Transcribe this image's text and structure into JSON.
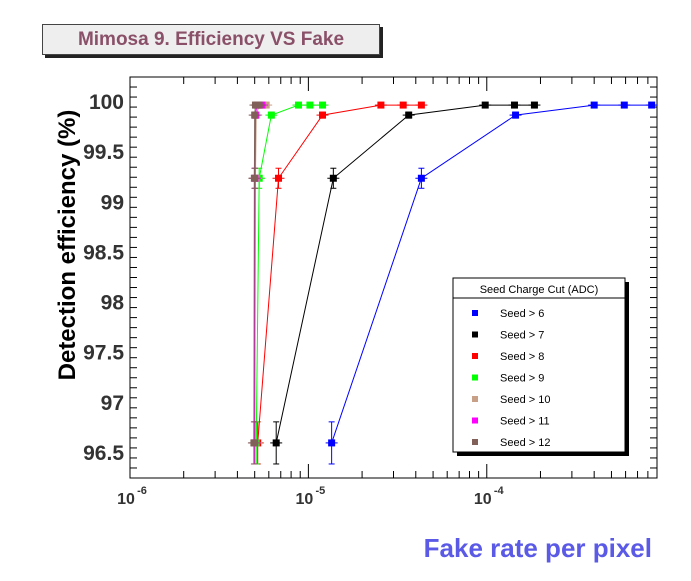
{
  "chart_data": {
    "type": "scatter",
    "title": "Mimosa 9. Efficiency VS Fake",
    "xlabel": "Fake rate per pixel",
    "ylabel": "Detection efficiency (%)",
    "xscale": "log",
    "xlim": [
      1e-06,
      0.0009
    ],
    "ylim": [
      96.25,
      100.25
    ],
    "xticks": [
      {
        "value": 1e-06,
        "label": "10",
        "exp": "-6"
      },
      {
        "value": 1e-05,
        "label": "10",
        "exp": "-5"
      },
      {
        "value": 0.0001,
        "label": "10",
        "exp": "-4"
      }
    ],
    "yticks": [
      {
        "value": 96.5,
        "label": "96.5"
      },
      {
        "value": 97,
        "label": "97"
      },
      {
        "value": 97.5,
        "label": "97.5"
      },
      {
        "value": 98,
        "label": "98"
      },
      {
        "value": 98.5,
        "label": "98.5"
      },
      {
        "value": 99,
        "label": "99"
      },
      {
        "value": 99.5,
        "label": "99.5"
      },
      {
        "value": 100,
        "label": "100"
      }
    ],
    "legend_title": "Seed Charge Cut (ADC)",
    "legend_position": "right-middle",
    "series": [
      {
        "name": "Seed > 6",
        "color": "#0000ff",
        "x": [
          1.35e-05,
          4.3e-05,
          0.000145,
          0.0004,
          0.00059,
          0.00084
        ],
        "y": [
          96.6,
          99.24,
          99.87,
          99.97,
          99.97,
          99.97
        ]
      },
      {
        "name": "Seed > 7",
        "color": "#000000",
        "x": [
          6.6e-06,
          1.38e-05,
          3.65e-05,
          9.8e-05,
          0.000143,
          0.000185
        ],
        "y": [
          96.6,
          99.24,
          99.87,
          99.97,
          99.97,
          99.97
        ]
      },
      {
        "name": "Seed > 8",
        "color": "#ff0000",
        "x": [
          5.2e-06,
          6.8e-06,
          1.2e-05,
          2.55e-05,
          3.4e-05,
          4.3e-05
        ],
        "y": [
          96.6,
          99.24,
          99.87,
          99.97,
          99.97,
          99.97
        ]
      },
      {
        "name": "Seed > 9",
        "color": "#00ff00",
        "x": [
          5.1e-06,
          5.3e-06,
          6.2e-06,
          8.8e-06,
          1.02e-05,
          1.2e-05
        ],
        "y": [
          96.6,
          99.24,
          99.87,
          99.97,
          99.97,
          99.97
        ]
      },
      {
        "name": "Seed > 10",
        "color": "#c8a088",
        "x": [
          5e-06,
          5.05e-06,
          5.1e-06,
          5.3e-06,
          5.6e-06,
          5.8e-06
        ],
        "y": [
          96.6,
          99.24,
          99.87,
          99.97,
          99.97,
          99.97
        ]
      },
      {
        "name": "Seed > 11",
        "color": "#ff00ff",
        "x": [
          5e-06,
          5.02e-06,
          5.05e-06,
          5.15e-06,
          5.3e-06,
          5.5e-06
        ],
        "y": [
          96.6,
          99.24,
          99.87,
          99.97,
          99.97,
          99.97
        ]
      },
      {
        "name": "Seed > 12",
        "color": "#806058",
        "x": [
          4.95e-06,
          4.98e-06,
          5e-06,
          5.05e-06,
          5.15e-06,
          5.3e-06
        ],
        "y": [
          96.6,
          99.24,
          99.87,
          99.97,
          99.97,
          99.97
        ]
      }
    ],
    "y_errors": [
      0.21,
      0.1,
      0.03,
      0.01,
      0.01,
      0.01
    ]
  }
}
